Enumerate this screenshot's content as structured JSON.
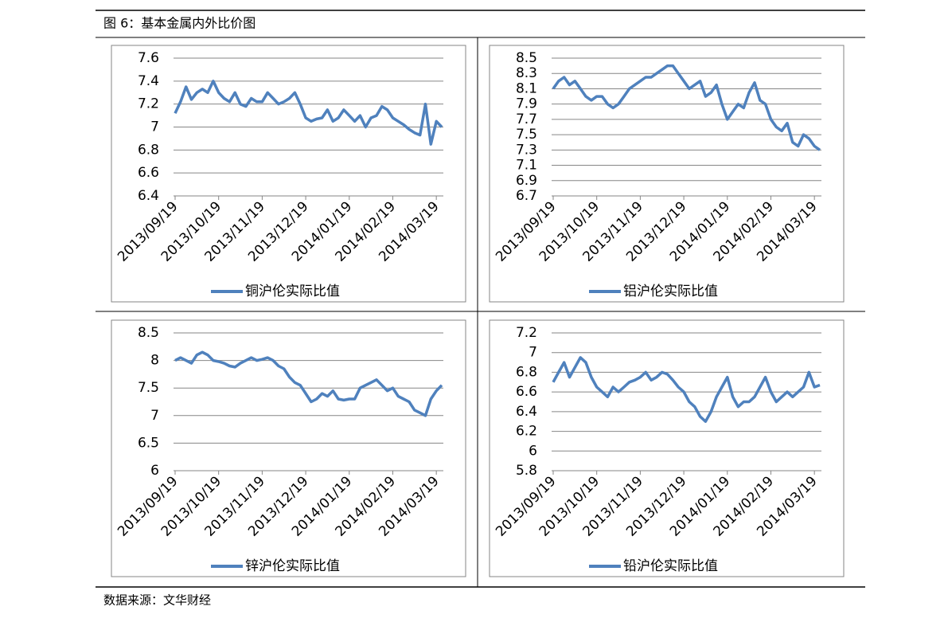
{
  "header": {
    "title": "图 6：基本金属内外比价图"
  },
  "footer": {
    "source": "数据来源：文华财经"
  },
  "chart_data": [
    {
      "type": "line",
      "categories": [
        "2013/09/19",
        null,
        null,
        null,
        null,
        null,
        null,
        null,
        "2013/10/19",
        null,
        null,
        null,
        null,
        null,
        null,
        null,
        "2013/11/19",
        null,
        null,
        null,
        null,
        null,
        null,
        null,
        "2013/12/19",
        null,
        null,
        null,
        null,
        null,
        null,
        null,
        "2014/01/19",
        null,
        null,
        null,
        null,
        null,
        null,
        null,
        "2014/02/19",
        null,
        null,
        null,
        null,
        null,
        null,
        null,
        "2014/03/19",
        null
      ],
      "series": [
        {
          "name": "铜沪伦实际比值",
          "color": "#4f81bd",
          "values": [
            7.12,
            7.22,
            7.35,
            7.24,
            7.3,
            7.33,
            7.3,
            7.4,
            7.3,
            7.25,
            7.22,
            7.3,
            7.2,
            7.18,
            7.25,
            7.22,
            7.22,
            7.3,
            7.25,
            7.2,
            7.22,
            7.25,
            7.3,
            7.2,
            7.08,
            7.05,
            7.07,
            7.08,
            7.15,
            7.05,
            7.08,
            7.15,
            7.1,
            7.05,
            7.1,
            7.0,
            7.08,
            7.1,
            7.18,
            7.15,
            7.08,
            7.05,
            7.02,
            6.98,
            6.95,
            6.93,
            7.2,
            6.85,
            7.05,
            7.0
          ]
        }
      ],
      "ylim": [
        6.4,
        7.6
      ],
      "yticks": [
        6.4,
        6.6,
        6.8,
        7,
        7.2,
        7.4,
        7.6
      ],
      "grid": true
    },
    {
      "type": "line",
      "categories": [
        "2013/09/19",
        null,
        null,
        null,
        null,
        null,
        null,
        null,
        "2013/10/19",
        null,
        null,
        null,
        null,
        null,
        null,
        null,
        "2013/11/19",
        null,
        null,
        null,
        null,
        null,
        null,
        null,
        "2013/12/19",
        null,
        null,
        null,
        null,
        null,
        null,
        null,
        "2014/01/19",
        null,
        null,
        null,
        null,
        null,
        null,
        null,
        "2014/02/19",
        null,
        null,
        null,
        null,
        null,
        null,
        null,
        "2014/03/19",
        null
      ],
      "series": [
        {
          "name": "铝沪伦实际比值",
          "color": "#4f81bd",
          "values": [
            8.1,
            8.2,
            8.25,
            8.15,
            8.2,
            8.1,
            8.0,
            7.95,
            8.0,
            8.0,
            7.9,
            7.85,
            7.9,
            8.0,
            8.1,
            8.15,
            8.2,
            8.25,
            8.25,
            8.3,
            8.35,
            8.4,
            8.4,
            8.3,
            8.2,
            8.1,
            8.15,
            8.2,
            8.0,
            8.05,
            8.15,
            7.9,
            7.7,
            7.8,
            7.9,
            7.85,
            8.05,
            8.18,
            7.95,
            7.9,
            7.7,
            7.6,
            7.55,
            7.65,
            7.4,
            7.35,
            7.5,
            7.45,
            7.35,
            7.3
          ]
        }
      ],
      "ylim": [
        6.7,
        8.5
      ],
      "yticks": [
        6.7,
        6.9,
        7.1,
        7.3,
        7.5,
        7.7,
        7.9,
        8.1,
        8.3,
        8.5
      ],
      "grid": true
    },
    {
      "type": "line",
      "categories": [
        "2013/09/19",
        null,
        null,
        null,
        null,
        null,
        null,
        null,
        "2013/10/19",
        null,
        null,
        null,
        null,
        null,
        null,
        null,
        "2013/11/19",
        null,
        null,
        null,
        null,
        null,
        null,
        null,
        "2013/12/19",
        null,
        null,
        null,
        null,
        null,
        null,
        null,
        "2014/01/19",
        null,
        null,
        null,
        null,
        null,
        null,
        null,
        "2014/02/19",
        null,
        null,
        null,
        null,
        null,
        null,
        null,
        "2014/03/19",
        null
      ],
      "series": [
        {
          "name": "锌沪伦实际比值",
          "color": "#4f81bd",
          "values": [
            8.0,
            8.05,
            8.0,
            7.95,
            8.1,
            8.15,
            8.1,
            8.0,
            7.98,
            7.95,
            7.9,
            7.88,
            7.95,
            8.0,
            8.05,
            8.0,
            8.02,
            8.05,
            8.0,
            7.9,
            7.85,
            7.7,
            7.6,
            7.55,
            7.4,
            7.25,
            7.3,
            7.4,
            7.35,
            7.45,
            7.3,
            7.28,
            7.3,
            7.3,
            7.5,
            7.55,
            7.6,
            7.65,
            7.55,
            7.45,
            7.5,
            7.35,
            7.3,
            7.25,
            7.1,
            7.05,
            7.0,
            7.3,
            7.45,
            7.55
          ]
        }
      ],
      "ylim": [
        6,
        8.5
      ],
      "yticks": [
        6,
        6.5,
        7,
        7.5,
        8,
        8.5
      ],
      "grid": true
    },
    {
      "type": "line",
      "categories": [
        "2013/09/19",
        null,
        null,
        null,
        null,
        null,
        null,
        null,
        "2013/10/19",
        null,
        null,
        null,
        null,
        null,
        null,
        null,
        "2013/11/19",
        null,
        null,
        null,
        null,
        null,
        null,
        null,
        "2013/12/19",
        null,
        null,
        null,
        null,
        null,
        null,
        null,
        "2014/01/19",
        null,
        null,
        null,
        null,
        null,
        null,
        null,
        "2014/02/19",
        null,
        null,
        null,
        null,
        null,
        null,
        null,
        "2014/03/19",
        null
      ],
      "series": [
        {
          "name": "铅沪伦实际比值",
          "color": "#4f81bd",
          "values": [
            6.7,
            6.8,
            6.9,
            6.75,
            6.85,
            6.95,
            6.9,
            6.75,
            6.65,
            6.6,
            6.55,
            6.65,
            6.6,
            6.65,
            6.7,
            6.72,
            6.75,
            6.8,
            6.72,
            6.75,
            6.8,
            6.78,
            6.72,
            6.65,
            6.6,
            6.5,
            6.45,
            6.35,
            6.3,
            6.4,
            6.55,
            6.65,
            6.75,
            6.55,
            6.45,
            6.5,
            6.5,
            6.55,
            6.65,
            6.75,
            6.6,
            6.5,
            6.55,
            6.6,
            6.55,
            6.6,
            6.65,
            6.8,
            6.65,
            6.67
          ]
        }
      ],
      "ylim": [
        5.8,
        7.2
      ],
      "yticks": [
        5.8,
        6,
        6.2,
        6.4,
        6.6,
        6.8,
        7,
        7.2
      ],
      "grid": true
    }
  ]
}
